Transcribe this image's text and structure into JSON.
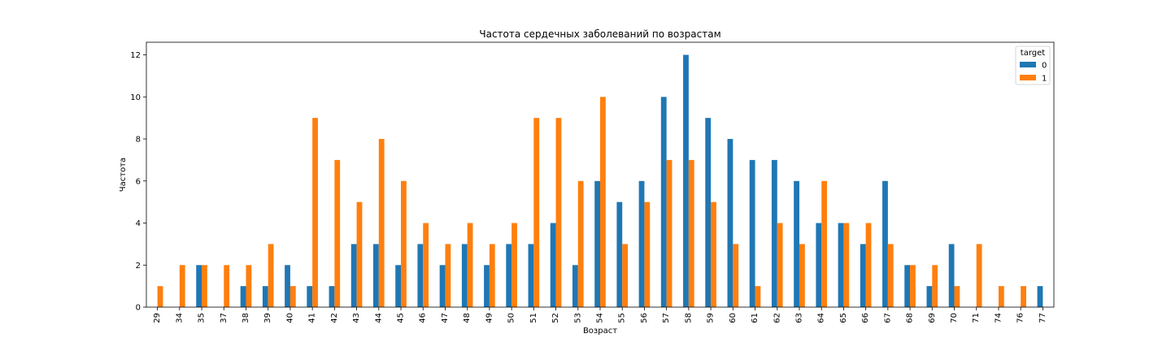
{
  "chart_data": {
    "type": "bar",
    "title": "Частота сердечных заболеваний по возрастам",
    "xlabel": "Возраст",
    "ylabel": "Частота",
    "ylim": [
      0,
      12.6
    ],
    "yticks": [
      "0",
      "2",
      "4",
      "6",
      "8",
      "10",
      "12"
    ],
    "grid": false,
    "legend": {
      "title": "target",
      "position": "top-right"
    },
    "categories": [
      "29",
      "34",
      "35",
      "37",
      "38",
      "39",
      "40",
      "41",
      "42",
      "43",
      "44",
      "45",
      "46",
      "47",
      "48",
      "49",
      "50",
      "51",
      "52",
      "53",
      "54",
      "55",
      "56",
      "57",
      "58",
      "59",
      "60",
      "61",
      "62",
      "63",
      "64",
      "65",
      "66",
      "67",
      "68",
      "69",
      "70",
      "71",
      "74",
      "76",
      "77"
    ],
    "series": [
      {
        "name": "0",
        "color": "#1f77b4",
        "values": [
          0,
          0,
          2,
          0,
          1,
          1,
          2,
          1,
          1,
          3,
          3,
          2,
          3,
          2,
          3,
          2,
          3,
          3,
          4,
          2,
          6,
          5,
          6,
          10,
          12,
          9,
          8,
          7,
          7,
          6,
          4,
          4,
          3,
          6,
          2,
          1,
          3,
          0,
          0,
          0,
          1
        ]
      },
      {
        "name": "1",
        "color": "#ff7f0e",
        "values": [
          1,
          2,
          2,
          2,
          2,
          3,
          1,
          9,
          7,
          5,
          8,
          6,
          4,
          3,
          4,
          3,
          4,
          9,
          9,
          6,
          10,
          3,
          5,
          7,
          7,
          5,
          3,
          1,
          4,
          3,
          6,
          4,
          4,
          3,
          2,
          2,
          1,
          3,
          1,
          1,
          0
        ]
      }
    ]
  }
}
